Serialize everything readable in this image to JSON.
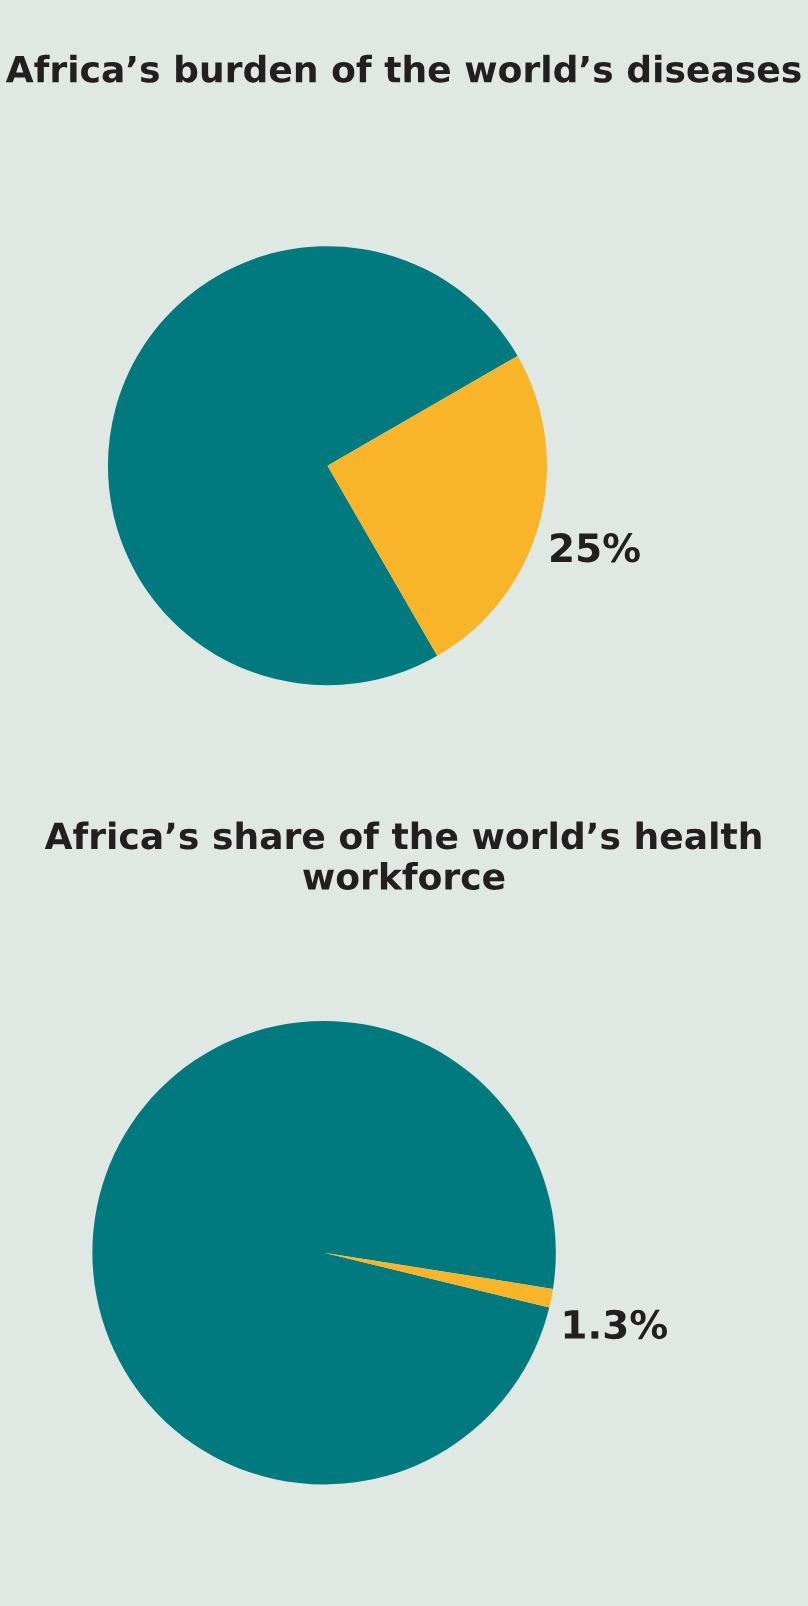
{
  "chart_data": [
    {
      "type": "pie",
      "title": "Africa’s burden of the world’s diseases",
      "categories": [
        null,
        null
      ],
      "values": [
        75,
        25
      ],
      "colors": [
        "#00797f",
        "#f9b52a"
      ],
      "value_labels": [
        null,
        "25%"
      ],
      "legend": false
    },
    {
      "type": "pie",
      "title": "Africa’s share of the world’s health workforce",
      "categories": [
        null,
        null
      ],
      "values": [
        98.7,
        1.3
      ],
      "colors": [
        "#00797f",
        "#f9b52a"
      ],
      "value_labels": [
        null,
        "1.3%"
      ],
      "legend": false
    }
  ]
}
